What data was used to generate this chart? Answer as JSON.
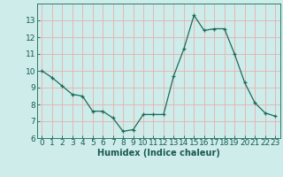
{
  "x": [
    0,
    1,
    2,
    3,
    4,
    5,
    6,
    7,
    8,
    9,
    10,
    11,
    12,
    13,
    14,
    15,
    16,
    17,
    18,
    19,
    20,
    21,
    22,
    23
  ],
  "y": [
    10.0,
    9.6,
    9.1,
    8.6,
    8.5,
    7.6,
    7.6,
    7.2,
    6.4,
    6.5,
    7.4,
    7.4,
    7.4,
    9.7,
    11.3,
    13.3,
    12.4,
    12.5,
    12.5,
    11.0,
    9.3,
    8.1,
    7.5,
    7.3
  ],
  "line_color": "#1a6b5a",
  "marker": "+",
  "marker_size": 3,
  "bg_color": "#ceecea",
  "grid_color": "#e8b0b0",
  "xlabel": "Humidex (Indice chaleur)",
  "ylim": [
    6,
    14
  ],
  "xlim": [
    -0.5,
    23.5
  ],
  "yticks": [
    6,
    7,
    8,
    9,
    10,
    11,
    12,
    13
  ],
  "xticks": [
    0,
    1,
    2,
    3,
    4,
    5,
    6,
    7,
    8,
    9,
    10,
    11,
    12,
    13,
    14,
    15,
    16,
    17,
    18,
    19,
    20,
    21,
    22,
    23
  ],
  "xlabel_fontsize": 7,
  "tick_fontsize": 6.5
}
